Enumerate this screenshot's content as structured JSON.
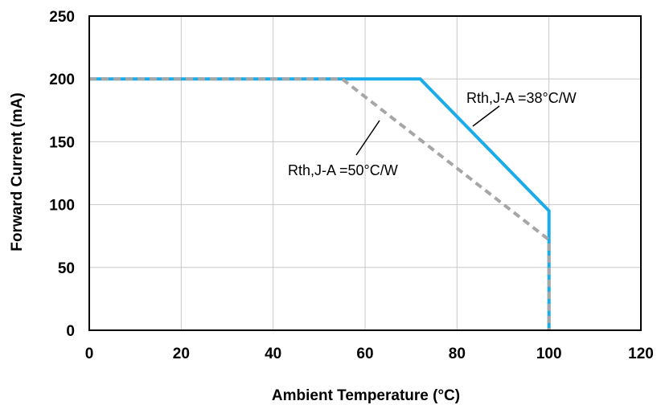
{
  "chart_data": {
    "type": "line",
    "xlabel": "Ambient Temperature (°C)",
    "ylabel": "Forward Current (mA)",
    "xlim": [
      0,
      120
    ],
    "ylim": [
      0,
      250
    ],
    "xticks": [
      "0",
      "20",
      "40",
      "60",
      "80",
      "100",
      "120"
    ],
    "yticks": [
      "0",
      "50",
      "100",
      "150",
      "200",
      "250"
    ],
    "grid": true,
    "legend": "none",
    "series": [
      {
        "name": "Rth,J-A =38°C/W",
        "color": "#1aacea",
        "style": "solid",
        "points": [
          [
            0,
            200
          ],
          [
            72,
            200
          ],
          [
            100,
            95
          ],
          [
            100,
            0
          ]
        ]
      },
      {
        "name": "Rth,J-A =50°C/W",
        "color": "#a6a6a6",
        "style": "dashed",
        "points": [
          [
            0,
            200
          ],
          [
            55,
            200
          ],
          [
            100,
            72
          ],
          [
            100,
            0
          ]
        ]
      }
    ],
    "annotations": [
      {
        "text": "Rth,J-A =38°C/W",
        "series": 0
      },
      {
        "text": "Rth,J-A =50°C/W",
        "series": 1
      }
    ]
  }
}
